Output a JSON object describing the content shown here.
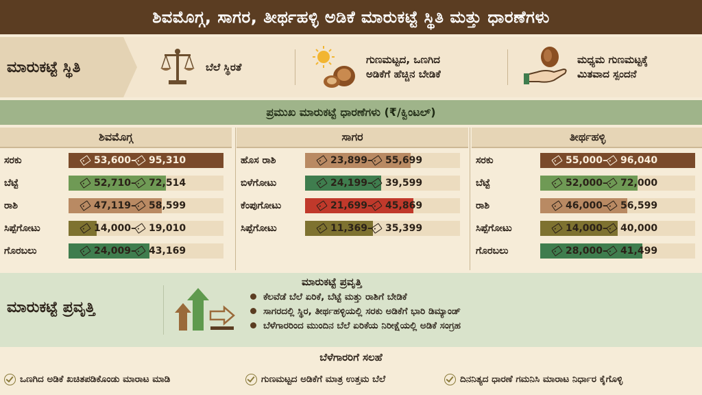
{
  "title": "ಶಿವಮೊಗ್ಗ, ಸಾಗರ, ತೀರ್ಥಹಳ್ಳಿ ಅಡಿಕೆ ಮಾರುಕಟ್ಟೆ ಸ್ಥಿತಿ ಮತ್ತು ಧಾರಣೆಗಳು",
  "status": {
    "label": "ಮಾರುಕಟ್ಟೆ ಸ್ಥಿತಿ",
    "items": [
      {
        "icon": "scale-icon",
        "line1": "ಬೆಲೆ ಸ್ಥಿರತೆ",
        "line2": ""
      },
      {
        "icon": "sun-arecanut-icon",
        "line1": "ಗುಣಮಟ್ಟದ, ಒಣಗಿದ",
        "line2": "ಅಡಿಕೆಗೆ ಹೆಚ್ಚಿನ ಬೇಡಿಕೆ"
      },
      {
        "icon": "hand-nut-icon",
        "line1": "ಮಧ್ಯಮ ಗುಣಮಟ್ಟಕ್ಕೆ",
        "line2": "ಮಿತವಾದ ಸ್ಪಂದನೆ"
      }
    ]
  },
  "prices_header": "ಪ್ರಮುಖ ಮಾರುಕಟ್ಟೆ ಧಾರಣೆಗಳು (₹/ಕ್ವಿಂಟಲ್)",
  "colors": {
    "brown": "#7a4a2a",
    "tan": "#b98a63",
    "green": "#6f9a55",
    "olive": "#7e7230",
    "red": "#c0392b",
    "darkgreen": "#3f7d4e"
  },
  "markets": [
    {
      "name": "ಶಿವಮೊಗ್ಗ",
      "rows": [
        {
          "variety": "ಸರಕು",
          "min": "53,600",
          "max": "95,310",
          "color": "#7a4a2a",
          "fill": 1.0
        },
        {
          "variety": "ಬೆಟ್ಟೆ",
          "min": "52,710",
          "max": "72,514",
          "color": "#6f9a55",
          "fill": 0.63
        },
        {
          "variety": "ರಾಶಿ",
          "min": "47,119",
          "max": "58,599",
          "color": "#b98a63",
          "fill": 0.6
        },
        {
          "variety": "ಸಿಪ್ಪೆಗೋಟು",
          "min": "14,000",
          "max": "19,010",
          "color": "#7e7230",
          "fill": 0.18
        },
        {
          "variety": "ಗೊರಬಲು",
          "min": "24,009",
          "max": "43,169",
          "color": "#3f7d4e",
          "fill": 0.52
        }
      ]
    },
    {
      "name": "ಸಾಗರ",
      "rows": [
        {
          "variety": "ಹೊಸ ರಾಶಿ",
          "min": "23,899",
          "max": "55,699",
          "color": "#b98a63",
          "fill": 0.68
        },
        {
          "variety": "ಬಿಳೆಗೋಟು",
          "min": "24,199",
          "max": "39,599",
          "color": "#3f7d4e",
          "fill": 0.49
        },
        {
          "variety": "ಕೆಂಪುಗೋಟು",
          "min": "21,699",
          "max": "45,869",
          "color": "#c0392b",
          "fill": 0.7
        },
        {
          "variety": "ಸಿಪ್ಪೆಗೋಟು",
          "min": "11,369",
          "max": "35,399",
          "color": "#7e7230",
          "fill": 0.44
        }
      ]
    },
    {
      "name": "ತೀರ್ಥಹಳ್ಳಿ",
      "rows": [
        {
          "variety": "ಸರಕು",
          "min": "55,000",
          "max": "96,040",
          "color": "#7a4a2a",
          "fill": 1.0
        },
        {
          "variety": "ಬೆಟ್ಟೆ",
          "min": "52,000",
          "max": "72,000",
          "color": "#6f9a55",
          "fill": 0.63
        },
        {
          "variety": "ರಾಶಿ",
          "min": "46,000",
          "max": "56,599",
          "color": "#b98a63",
          "fill": 0.56
        },
        {
          "variety": "ಸಿಪ್ಪೆಗೋಟು",
          "min": "14,000",
          "max": "40,000",
          "color": "#7e7230",
          "fill": 0.5
        },
        {
          "variety": "ಗೊರಬಲು",
          "min": "28,000",
          "max": "41,499",
          "color": "#3f7d4e",
          "fill": 0.66
        }
      ]
    }
  ],
  "trend": {
    "label": "ಮಾರುಕಟ್ಟೆ ಪ್ರವೃತ್ತಿ",
    "title": "ಮಾರುಕಟ್ಟೆ ಪ್ರವೃತ್ತಿ",
    "points": [
      "ಕೆಲವೆಡೆ ಬೆಲೆ ಏರಿಕೆ, ಬೆಟ್ಟೆ ಮತ್ತು ರಾಶಿಗೆ ಬೇಡಿಕೆ",
      "ಸಾಗರದಲ್ಲಿ ಸ್ಥಿರ, ತೀರ್ಥಹಳ್ಳಿಯಲ್ಲಿ ಸರಕು ಅಡಿಕೆಗೆ ಭಾರಿ ಡಿಮ್ಯಾಂಡ್",
      "ಬೆಳೆಗಾರರಿಂದ ಮುಂದಿನ ಬೆಲೆ ಏರಿಕೆಯ ನಿರೀಕ್ಷೆಯಲ್ಲಿ ಅಡಿಕೆ ಸಂಗ್ರಹ"
    ]
  },
  "advice": {
    "title": "ಬೆಳೆಗಾರರಿಗೆ ಸಲಹೆ",
    "items": [
      "ಒಣಗಿದ ಅಡಿಕೆ ಖಚಿತಪಡಿಕೊಂಡು ಮಾರಾಟ ಮಾಡಿ",
      "ಗುಣಮಟ್ಟದ ಅಡಿಕೆಗೆ ಮಾತ್ರ ಉತ್ತಮ ಬೆಲೆ",
      "ದಿನನಿತ್ಯದ ಧಾರಣೆ ಗಮನಿಸಿ ಮಾರಾಟ ನಿರ್ಧಾರ ಕೈಗೊಳ್ಳಿ"
    ]
  }
}
